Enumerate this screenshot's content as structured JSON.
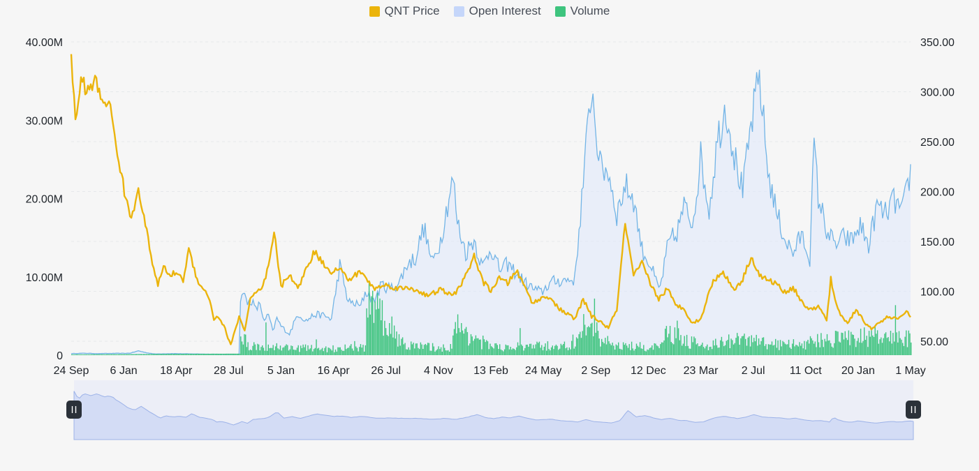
{
  "chart_data": {
    "type": "line",
    "legend_position": "top-center",
    "legend": [
      {
        "name": "QNT Price",
        "color": "#ebb40c",
        "kind": "line"
      },
      {
        "name": "Open Interest",
        "color": "#c5d6fa",
        "kind": "area"
      },
      {
        "name": "Volume",
        "color": "#3ec47e",
        "kind": "bar"
      }
    ],
    "x_ticks": [
      "24 Sep",
      "6 Jan",
      "18 Apr",
      "28 Jul",
      "5 Jan",
      "16 Apr",
      "26 Jul",
      "4 Nov",
      "13 Feb",
      "24 May",
      "2 Sep",
      "12 Dec",
      "23 Mar",
      "2 Jul",
      "11 Oct",
      "20 Jan",
      "1 May"
    ],
    "y_left": {
      "ticks": [
        "0",
        "10.00M",
        "20.00M",
        "30.00M",
        "40.00M"
      ],
      "tick_values": [
        0,
        10000000,
        20000000,
        30000000,
        40000000
      ],
      "range": [
        0,
        40000000
      ]
    },
    "y_right": {
      "ticks": [
        "50.00",
        "100.00",
        "150.00",
        "200.00",
        "250.00",
        "300.00",
        "350.00"
      ],
      "tick_values": [
        50,
        100,
        150,
        200,
        250,
        300,
        350
      ],
      "range": [
        36,
        350
      ]
    },
    "grid": "horizontal dashed",
    "series": [
      {
        "name": "QNT Price",
        "axis": "right",
        "x": [
          0,
          0.005,
          0.012,
          0.02,
          0.028,
          0.036,
          0.045,
          0.055,
          0.065,
          0.072,
          0.08,
          0.088,
          0.097,
          0.103,
          0.11,
          0.118,
          0.125,
          0.133,
          0.14,
          0.15,
          0.158,
          0.165,
          0.17,
          0.175,
          0.182,
          0.19,
          0.195,
          0.2,
          0.207,
          0.213,
          0.22,
          0.228,
          0.235,
          0.242,
          0.25,
          0.26,
          0.27,
          0.28,
          0.29,
          0.3,
          0.31,
          0.32,
          0.33,
          0.345,
          0.36,
          0.375,
          0.39,
          0.405,
          0.415,
          0.425,
          0.44,
          0.455,
          0.47,
          0.48,
          0.49,
          0.5,
          0.51,
          0.52,
          0.53,
          0.54,
          0.55,
          0.56,
          0.57,
          0.58,
          0.59,
          0.6,
          0.61,
          0.62,
          0.63,
          0.64,
          0.65,
          0.66,
          0.67,
          0.68,
          0.69,
          0.7,
          0.71,
          0.72,
          0.73,
          0.74,
          0.75,
          0.758,
          0.765,
          0.775,
          0.79,
          0.8,
          0.81,
          0.82,
          0.83,
          0.84,
          0.85,
          0.86,
          0.87,
          0.88,
          0.89,
          0.9,
          0.905,
          0.91,
          0.918,
          0.925,
          0.935,
          0.945,
          0.955,
          0.965,
          0.975,
          0.985,
          0.995,
          1.0
        ],
        "y": [
          335,
          270,
          312,
          300,
          312,
          292,
          290,
          240,
          192,
          172,
          205,
          168,
          128,
          105,
          125,
          115,
          120,
          110,
          142,
          112,
          102,
          92,
          72,
          75,
          65,
          46,
          60,
          75,
          60,
          92,
          98,
          103,
          125,
          158,
          104,
          118,
          102,
          123,
          140,
          128,
          120,
          123,
          111,
          120,
          103,
          106,
          103,
          103,
          100,
          95,
          102,
          95,
          115,
          136,
          110,
          101,
          113,
          108,
          121,
          105,
          88,
          93,
          95,
          83,
          78,
          72,
          92,
          75,
          70,
          63,
          82,
          168,
          115,
          128,
          108,
          92,
          103,
          86,
          83,
          68,
          72,
          94,
          110,
          120,
          102,
          112,
          135,
          116,
          111,
          108,
          99,
          104,
          90,
          81,
          85,
          71,
          112,
          90,
          75,
          68,
          82,
          69,
          62,
          70,
          75,
          71,
          81,
          75
        ]
      },
      {
        "name": "Open Interest",
        "axis": "left",
        "x": [
          0,
          0.015,
          0.03,
          0.07,
          0.08,
          0.09,
          0.1,
          0.12,
          0.15,
          0.2,
          0.2,
          0.203,
          0.21,
          0.215,
          0.22,
          0.225,
          0.23,
          0.235,
          0.24,
          0.245,
          0.25,
          0.26,
          0.27,
          0.28,
          0.29,
          0.3,
          0.31,
          0.32,
          0.33,
          0.34,
          0.345,
          0.35,
          0.355,
          0.36,
          0.37,
          0.38,
          0.39,
          0.4,
          0.41,
          0.42,
          0.43,
          0.44,
          0.45,
          0.455,
          0.46,
          0.47,
          0.48,
          0.49,
          0.5,
          0.51,
          0.52,
          0.53,
          0.54,
          0.55,
          0.56,
          0.57,
          0.58,
          0.6,
          0.62,
          0.63,
          0.64,
          0.65,
          0.66,
          0.67,
          0.68,
          0.69,
          0.7,
          0.703,
          0.71,
          0.715,
          0.72,
          0.73,
          0.74,
          0.75,
          0.76,
          0.77,
          0.78,
          0.79,
          0.8,
          0.81,
          0.82,
          0.83,
          0.84,
          0.85,
          0.86,
          0.87,
          0.88,
          0.885,
          0.89,
          0.9,
          0.91,
          0.92,
          0.93,
          0.94,
          0.95,
          0.96,
          0.97,
          0.98,
          0.99,
          1.0
        ],
        "y": [
          0.2,
          0.25,
          0.2,
          0.25,
          0.55,
          0.3,
          0.15,
          0.2,
          0.15,
          0.1,
          4,
          8.5,
          6.6,
          7,
          5.8,
          6.6,
          4.2,
          5.2,
          3,
          4.7,
          3.7,
          2.7,
          5.3,
          4.4,
          5.2,
          5.1,
          4.6,
          11.5,
          6.8,
          6.5,
          6.2,
          8,
          7.8,
          6.8,
          9,
          8.5,
          9.1,
          11.6,
          12.4,
          16.4,
          11.7,
          14.7,
          20.2,
          22.5,
          17,
          13.1,
          14.8,
          11.2,
          13.8,
          10.9,
          11.6,
          10.5,
          9.3,
          8.5,
          8,
          9.2,
          9.5,
          9.7,
          34.4,
          24,
          23.5,
          18,
          21.7,
          20,
          13.5,
          11.5,
          8.4,
          9.3,
          13.5,
          15,
          15,
          19,
          16.8,
          25.2,
          18.5,
          27.6,
          31.9,
          25.5,
          20.8,
          29.3,
          35.5,
          23.5,
          18.3,
          14.9,
          13,
          15.4,
          12.4,
          26.9,
          20.2,
          16,
          14,
          15,
          14.6,
          16.6,
          14,
          19,
          18,
          19.8,
          18.2,
          23.4
        ]
      },
      {
        "name": "Volume",
        "axis": "left",
        "x": [
          0,
          0.2,
          0.201,
          0.21,
          0.3,
          0.35,
          0.35,
          0.4,
          0.45,
          0.46,
          0.5,
          0.55,
          0.6,
          0.62,
          0.63,
          0.65,
          0.7,
          0.71,
          0.75,
          0.8,
          0.85,
          0.9,
          0.95,
          1.0
        ],
        "y": [
          0.1,
          0.2,
          3.4,
          1.5,
          1,
          1.2,
          8.5,
          1.5,
          1.1,
          4.5,
          1.2,
          1.4,
          1.5,
          7.2,
          2.5,
          1.5,
          1.2,
          3.8,
          1.5,
          2.5,
          1.5,
          2.5,
          3,
          2.5
        ]
      }
    ],
    "navigator": {
      "range": [
        0,
        1
      ]
    }
  }
}
